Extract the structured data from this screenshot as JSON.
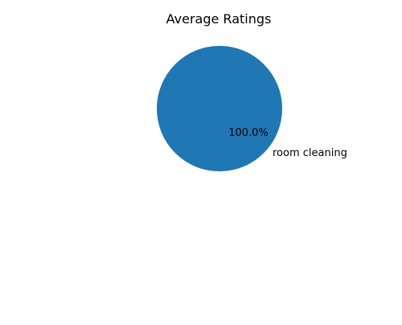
{
  "chart_data": {
    "type": "pie",
    "title": "Average Ratings",
    "slices": [
      {
        "label": "room cleaning",
        "value": 100,
        "percent_label": "100.0%",
        "color": "#1f77b4"
      }
    ]
  }
}
